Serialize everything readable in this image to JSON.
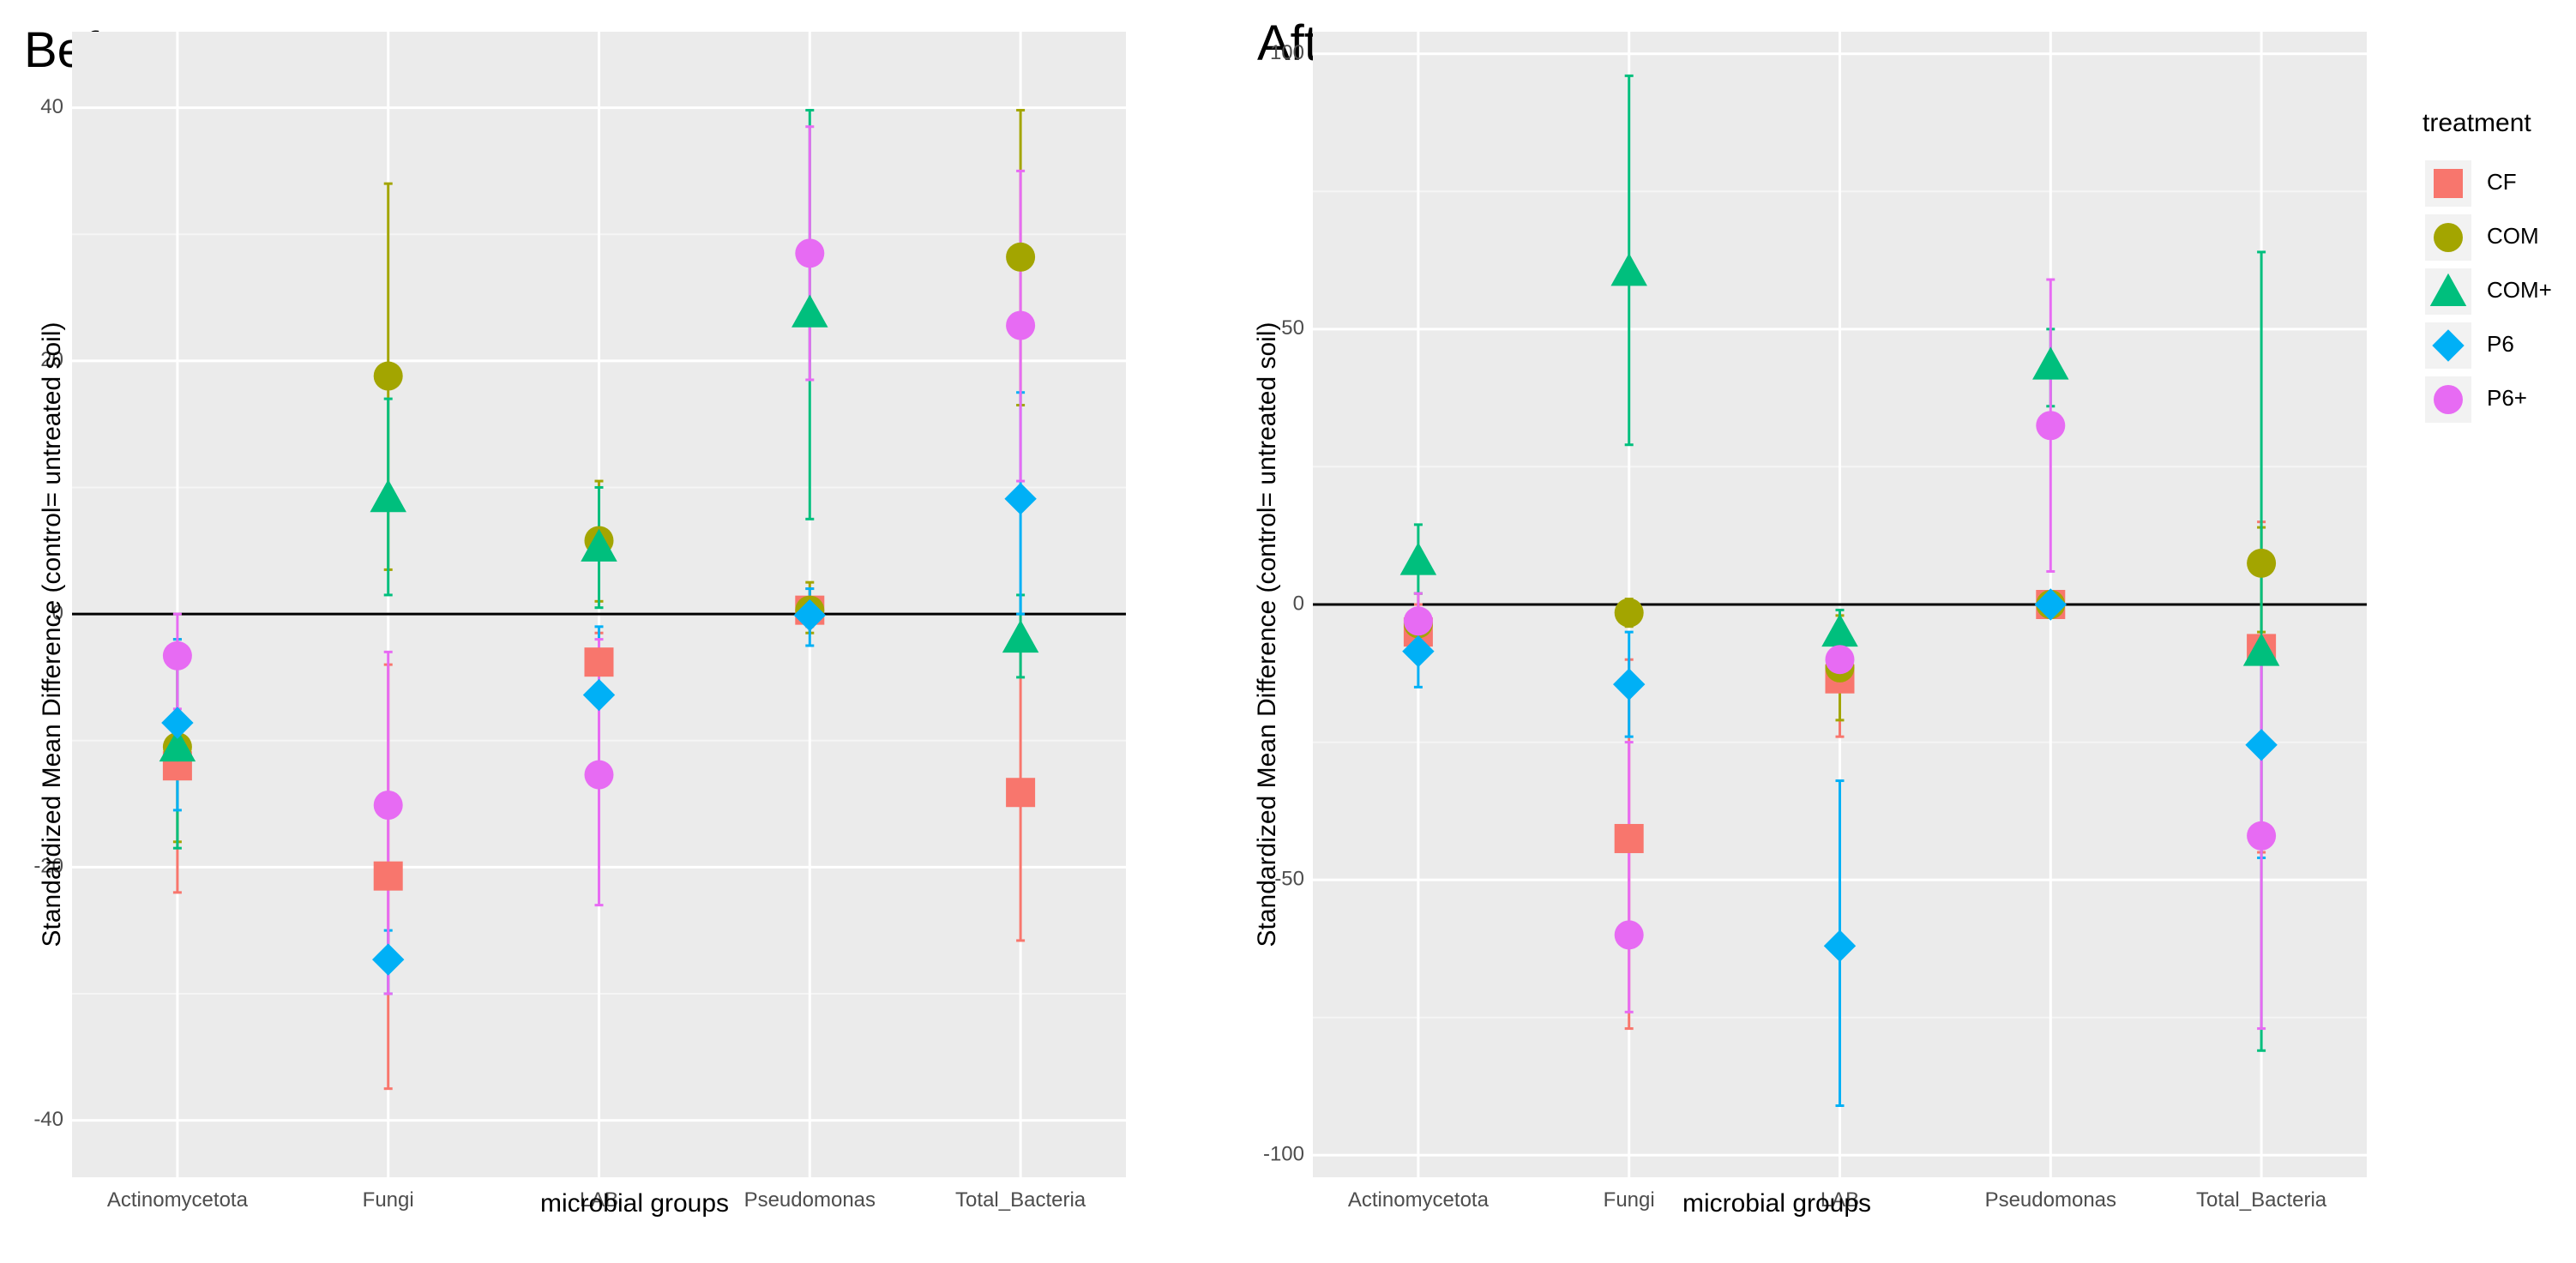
{
  "legend": {
    "title": "treatment",
    "entries": [
      {
        "name": "CF",
        "color": "#F8766D",
        "shape": "square"
      },
      {
        "name": "COM",
        "color": "#A3A500",
        "shape": "circle"
      },
      {
        "name": "COM+",
        "color": "#00BF7D",
        "shape": "triangle"
      },
      {
        "name": "P6",
        "color": "#00B0F6",
        "shape": "diamond"
      },
      {
        "name": "P6+",
        "color": "#E76BF3",
        "shape": "circle"
      }
    ]
  },
  "chart_data": [
    {
      "type": "scatter",
      "title": "Before",
      "xlabel": "microbial groups",
      "ylabel": "Standardized Mean Difference (control= untreated soil)",
      "categories": [
        "Actinomycetota",
        "Fungi",
        "LAB",
        "Pseudomonas",
        "Total_Bacteria"
      ],
      "ylim": [
        -44.5,
        46
      ],
      "yticks": [
        -40,
        -20,
        0,
        20,
        40
      ],
      "reference_line": 0,
      "grid": true,
      "series": [
        {
          "name": "CF",
          "values": [
            -12,
            -20.7,
            -3.8,
            0.3,
            -14.1
          ],
          "lower": [
            -22,
            -37.5,
            -6,
            -1,
            -25.8
          ],
          "upper": [
            -2,
            -4,
            -1.5,
            2,
            -2.5
          ]
        },
        {
          "name": "COM",
          "values": [
            -10.5,
            18.8,
            5.8,
            0.3,
            28.2
          ],
          "lower": [
            -18,
            3.5,
            1,
            -1.5,
            16.5
          ],
          "upper": [
            -3,
            34,
            10.5,
            2.5,
            39.8
          ]
        },
        {
          "name": "COM+",
          "values": [
            -10.5,
            9.2,
            5.3,
            23.8,
            -1.9
          ],
          "lower": [
            -18.5,
            1.5,
            0.5,
            7.5,
            -5
          ],
          "upper": [
            -2.5,
            17,
            10,
            39.8,
            1.5
          ]
        },
        {
          "name": "P6",
          "values": [
            -8.6,
            -27.3,
            -6.4,
            -0.1,
            9.1
          ],
          "lower": [
            -15.5,
            -30,
            -12,
            -2.5,
            0
          ],
          "upper": [
            -2,
            -25,
            -1,
            2,
            17.5
          ]
        },
        {
          "name": "P6+",
          "values": [
            -3.3,
            -15.1,
            -12.7,
            28.5,
            22.8
          ],
          "lower": [
            -7.5,
            -30,
            -23,
            18.5,
            10.5
          ],
          "upper": [
            0,
            -3,
            -2,
            38.5,
            35
          ]
        }
      ]
    },
    {
      "type": "scatter",
      "title": "After",
      "xlabel": "microbial groups",
      "ylabel": "Standardized Mean Difference (control= untreated soil)",
      "categories": [
        "Actinomycetota",
        "Fungi",
        "LAB",
        "Pseudomonas",
        "Total_Bacteria"
      ],
      "ylim": [
        -104,
        104
      ],
      "yticks": [
        -100,
        -50,
        0,
        50,
        100
      ],
      "reference_line": 0,
      "grid": true,
      "series": [
        {
          "name": "CF",
          "values": [
            -5,
            -42.5,
            -13.5,
            0,
            -8
          ],
          "lower": [
            -10,
            -77,
            -24,
            -1,
            -45
          ],
          "upper": [
            0,
            -10,
            -4,
            1,
            15
          ]
        },
        {
          "name": "COM",
          "values": [
            -3.5,
            -1.5,
            -11.5,
            0,
            7.5
          ],
          "lower": [
            -9,
            -4,
            -21,
            -1,
            -5
          ],
          "upper": [
            2,
            1,
            -2,
            1,
            14
          ]
        },
        {
          "name": "COM+",
          "values": [
            8,
            60.5,
            -5,
            43.5,
            -8.5
          ],
          "lower": [
            2,
            29,
            -10,
            36,
            -81
          ],
          "upper": [
            14.5,
            96,
            -1,
            50,
            64
          ]
        },
        {
          "name": "P6",
          "values": [
            -8.5,
            -14.5,
            -62,
            0,
            -25.5
          ],
          "lower": [
            -15,
            -24,
            -91,
            -1,
            -46
          ],
          "upper": [
            -2,
            -5,
            -32,
            1,
            -6
          ]
        },
        {
          "name": "P6+",
          "values": [
            -3,
            -60,
            -10,
            32.5,
            -42
          ],
          "lower": [
            -8,
            -74,
            -14,
            6,
            -77
          ],
          "upper": [
            2,
            -25,
            -6,
            59,
            -10
          ]
        }
      ]
    }
  ]
}
